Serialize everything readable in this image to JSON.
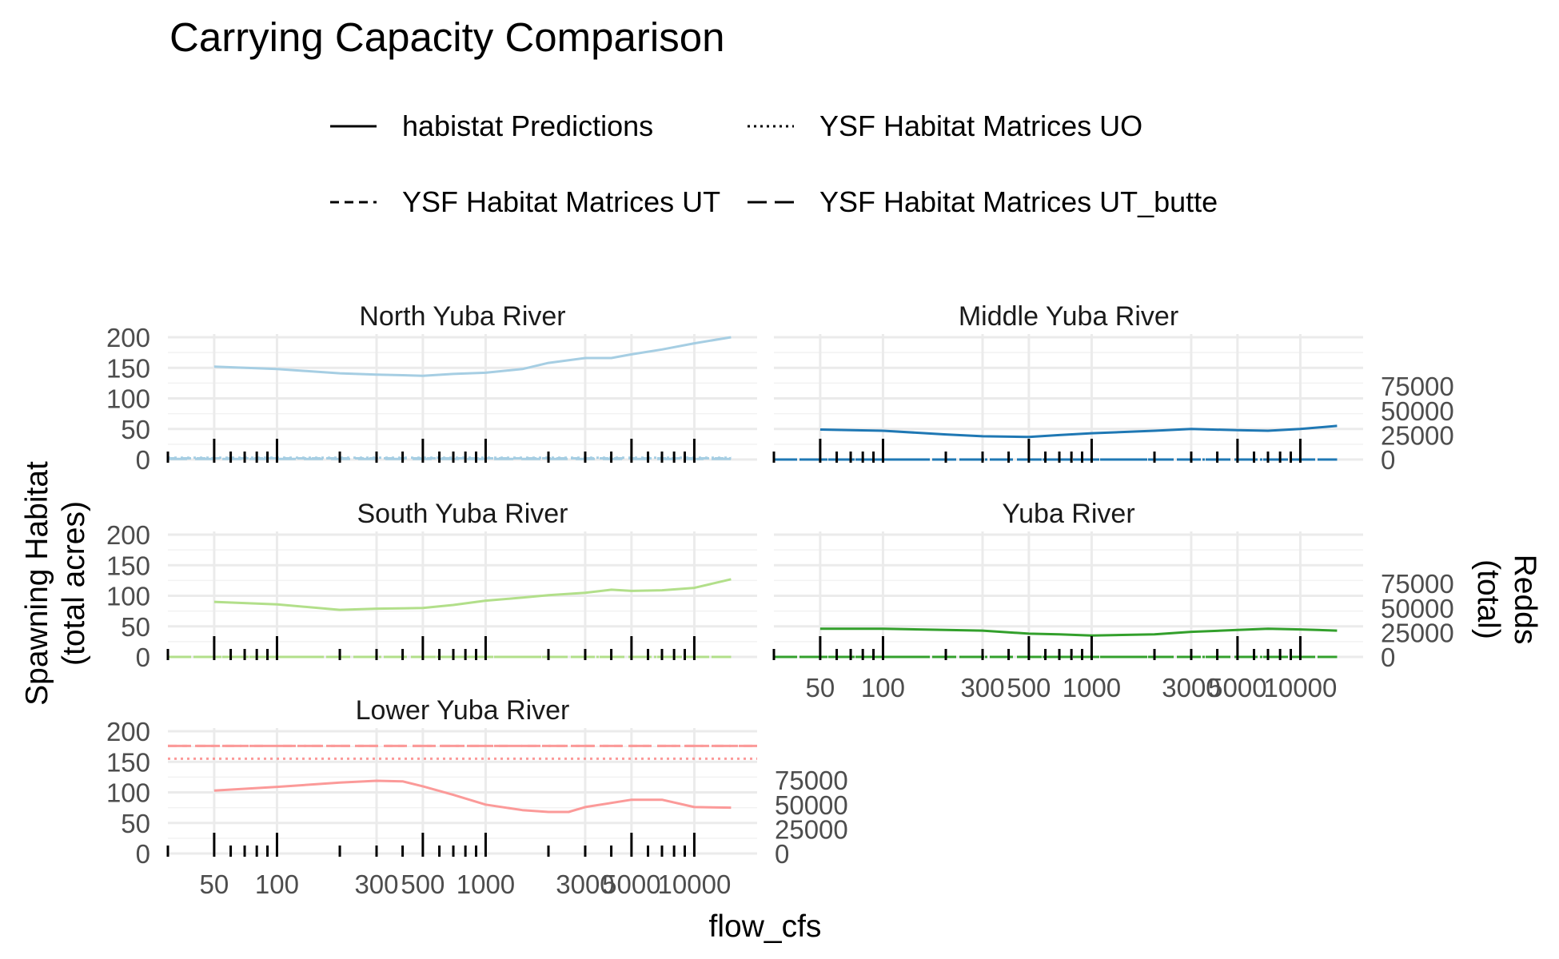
{
  "chart_data": {
    "type": "line",
    "title": "Carrying Capacity Comparison",
    "xlabel": "flow_cfs",
    "ylabel": [
      "Spawning Habitat",
      "(total acres)"
    ],
    "ylabel_right": [
      "Redds",
      "(total)"
    ],
    "x_scale": "log",
    "x_ticks": [
      "50",
      "100",
      "300",
      "500",
      "1000",
      "3000",
      "5000",
      "10000"
    ],
    "y_ticks": [
      "0",
      "50",
      "100",
      "150",
      "200"
    ],
    "y_ticks_right": [
      "0",
      "25000",
      "50000",
      "75000"
    ],
    "ylim": [
      0,
      200
    ],
    "grid": true,
    "legend_position": "top",
    "legend": [
      {
        "label": "habistat Predictions",
        "linetype": "solid"
      },
      {
        "label": "YSF Habitat Matrices UO",
        "linetype": "dotted"
      },
      {
        "label": "YSF Habitat Matrices UT",
        "linetype": "dashed"
      },
      {
        "label": "YSF Habitat Matrices UT_butte",
        "linetype": "longdash"
      }
    ],
    "panels": [
      {
        "name": "North Yuba River",
        "color": "#a6cee3",
        "series": [
          {
            "name": "habistat Predictions",
            "x": [
              50,
              100,
              200,
              300,
              500,
              700,
              1000,
              1500,
              2000,
              3000,
              4000,
              5000,
              7000,
              10000,
              15000
            ],
            "y": [
              152,
              148,
              141,
              139,
              137,
              140,
              142,
              148,
              158,
              166,
              166,
              172,
              180,
              190,
              200
            ]
          },
          {
            "name": "YSF Habitat Matrices UO",
            "x": [
              30,
              15000
            ],
            "y": [
              3,
              3
            ]
          },
          {
            "name": "YSF Habitat Matrices UT",
            "x": [
              30,
              15000
            ],
            "y": [
              2,
              2
            ]
          },
          {
            "name": "YSF Habitat Matrices UT_butte",
            "x": [
              30,
              15000
            ],
            "y": [
              1,
              1
            ]
          }
        ]
      },
      {
        "name": "Middle Yuba River",
        "color": "#1f78b4",
        "series": [
          {
            "name": "habistat Predictions",
            "x": [
              50,
              100,
              200,
              300,
              500,
              700,
              1000,
              2000,
              3000,
              5000,
              7000,
              10000,
              15000
            ],
            "y": [
              49,
              47,
              41,
              38,
              37,
              40,
              43,
              47,
              50,
              48,
              47,
              50,
              55
            ]
          },
          {
            "name": "YSF Habitat Matrices UO",
            "x": [
              30,
              15000
            ],
            "y": [
              0,
              0
            ]
          },
          {
            "name": "YSF Habitat Matrices UT",
            "x": [
              30,
              15000
            ],
            "y": [
              0,
              0
            ]
          },
          {
            "name": "YSF Habitat Matrices UT_butte",
            "x": [
              30,
              15000
            ],
            "y": [
              0,
              0
            ]
          }
        ]
      },
      {
        "name": "South Yuba River",
        "color": "#b2df8a",
        "series": [
          {
            "name": "habistat Predictions",
            "x": [
              50,
              100,
              200,
              300,
              500,
              700,
              1000,
              1500,
              2000,
              3000,
              4000,
              5000,
              7000,
              10000,
              15000
            ],
            "y": [
              90,
              86,
              77,
              79,
              80,
              85,
              92,
              97,
              101,
              105,
              110,
              108,
              109,
              113,
              127
            ]
          },
          {
            "name": "YSF Habitat Matrices UO",
            "x": [
              30,
              15000
            ],
            "y": [
              0,
              0
            ]
          },
          {
            "name": "YSF Habitat Matrices UT",
            "x": [
              30,
              15000
            ],
            "y": [
              0,
              0
            ]
          },
          {
            "name": "YSF Habitat Matrices UT_butte",
            "x": [
              30,
              15000
            ],
            "y": [
              0,
              0
            ]
          }
        ]
      },
      {
        "name": "Yuba River",
        "color": "#33a02c",
        "series": [
          {
            "name": "habistat Predictions",
            "x": [
              50,
              100,
              200,
              300,
              500,
              700,
              1000,
              2000,
              3000,
              5000,
              7000,
              10000,
              15000
            ],
            "y": [
              46,
              46,
              44,
              43,
              38,
              37,
              35,
              37,
              41,
              44,
              46,
              45,
              43
            ]
          },
          {
            "name": "YSF Habitat Matrices UO",
            "x": [
              30,
              15000
            ],
            "y": [
              0,
              0
            ]
          },
          {
            "name": "YSF Habitat Matrices UT",
            "x": [
              30,
              15000
            ],
            "y": [
              0,
              0
            ]
          },
          {
            "name": "YSF Habitat Matrices UT_butte",
            "x": [
              30,
              15000
            ],
            "y": [
              0,
              0
            ]
          }
        ]
      },
      {
        "name": "Lower Yuba River",
        "color": "#fb9a99",
        "series": [
          {
            "name": "habistat Predictions",
            "x": [
              50,
              100,
              200,
              300,
              400,
              500,
              700,
              1000,
              1500,
              2000,
              2500,
              3000,
              5000,
              7000,
              10000,
              15000
            ],
            "y": [
              103,
              109,
              116,
              119,
              118,
              110,
              96,
              80,
              71,
              68,
              68,
              76,
              88,
              88,
              76,
              75
            ]
          },
          {
            "name": "YSF Habitat Matrices UO",
            "x": [
              30,
              20000
            ],
            "y": [
              155,
              155
            ]
          },
          {
            "name": "YSF Habitat Matrices UT",
            "x": [
              30,
              20000
            ],
            "y": [
              176,
              176
            ]
          },
          {
            "name": "YSF Habitat Matrices UT_butte",
            "x": [
              30,
              20000
            ],
            "y": [
              176,
              176
            ]
          }
        ]
      }
    ]
  }
}
